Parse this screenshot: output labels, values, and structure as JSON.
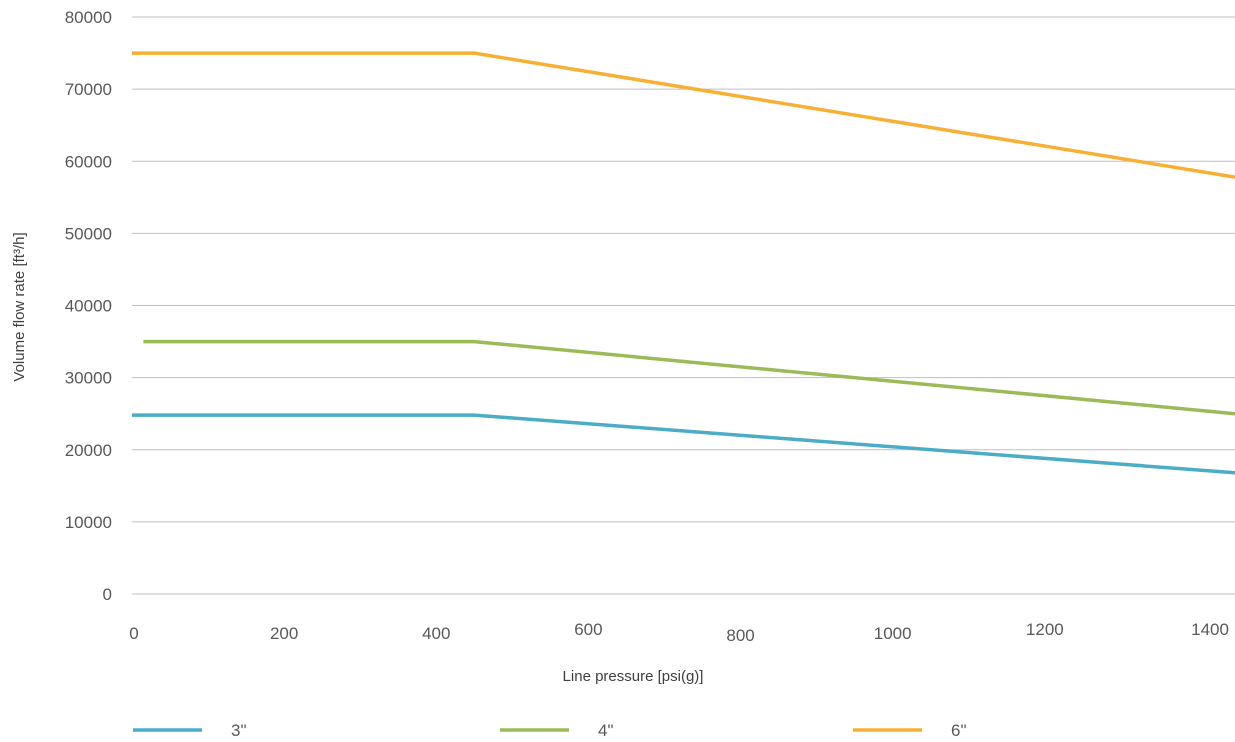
{
  "chart_data": {
    "type": "line",
    "xlabel": "Line pressure [psi(g)]",
    "ylabel": "Volume flow rate [ft³/h]",
    "xlim": [
      0,
      1450
    ],
    "ylim": [
      0,
      80000
    ],
    "x_ticks": [
      "0",
      "200",
      "400",
      "600",
      "800",
      "1000",
      "1200",
      "1400"
    ],
    "y_ticks": [
      "0",
      "10000",
      "20000",
      "30000",
      "40000",
      "50000",
      "60000",
      "70000",
      "80000"
    ],
    "grid": "horizontal",
    "legend_position": "bottom",
    "series": [
      {
        "name": "3\"",
        "color": "#4bacc6",
        "x": [
          0,
          450,
          1450
        ],
        "y": [
          24800,
          24800,
          16800
        ]
      },
      {
        "name": "4\"",
        "color": "#9bbb59",
        "x": [
          15,
          450,
          1450
        ],
        "y": [
          35000,
          35000,
          25000
        ]
      },
      {
        "name": "6\"",
        "color": "#f7b034",
        "x": [
          0,
          450,
          1450
        ],
        "y": [
          75000,
          75000,
          57800
        ]
      }
    ]
  }
}
